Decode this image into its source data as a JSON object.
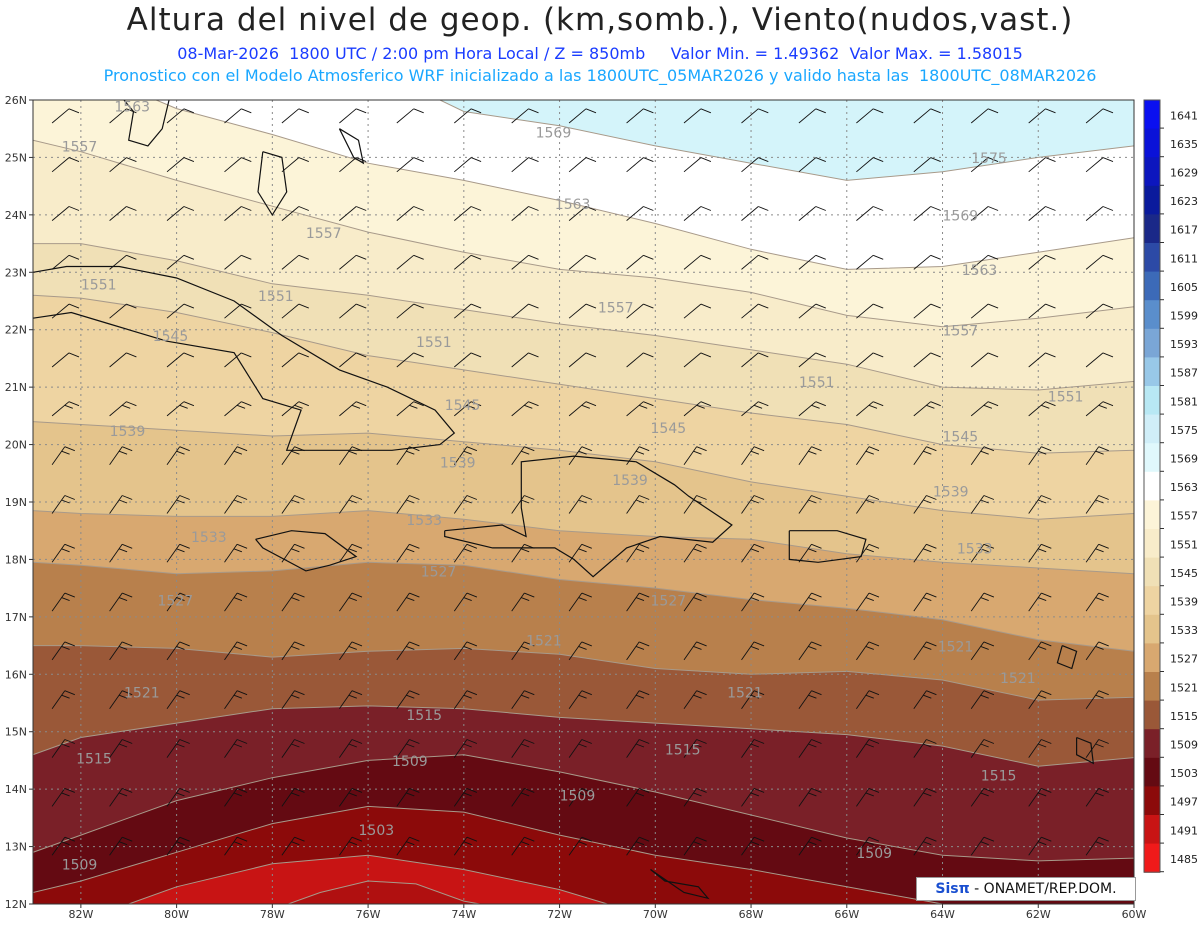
{
  "header": {
    "title": "Altura del nivel de geop. (km,somb.), Viento(nudos,vast.)",
    "line1": "08-Mar-2026  1800 UTC / 2:00 pm Hora Local / Z = 850mb     Valor Min. = 1.49362  Valor Max. = 1.58015",
    "line2": "Pronostico con el Modelo Atmosferico WRF inicializado a las 1800UTC_05MAR2026 y valido hasta las  1800UTC_08MAR2026"
  },
  "map": {
    "lon_range": [
      -83,
      -60
    ],
    "lat_range": [
      12,
      26
    ],
    "lon_ticks": [
      "82W",
      "80W",
      "78W",
      "76W",
      "74W",
      "72W",
      "70W",
      "68W",
      "66W",
      "64W",
      "62W",
      "60W"
    ],
    "lat_ticks": [
      "26N",
      "25N",
      "24N",
      "23N",
      "22N",
      "21N",
      "20N",
      "19N",
      "18N",
      "17N",
      "16N",
      "15N",
      "14N",
      "13N",
      "12N"
    ],
    "contour_labels": [
      {
        "text": "1563",
        "lon": -81.3,
        "lat": 25.8
      },
      {
        "text": "1557",
        "lon": -82.4,
        "lat": 25.1
      },
      {
        "text": "1569",
        "lon": -72.5,
        "lat": 25.35
      },
      {
        "text": "1575",
        "lon": -63.4,
        "lat": 24.9
      },
      {
        "text": "1563",
        "lon": -72.1,
        "lat": 24.1
      },
      {
        "text": "1569",
        "lon": -64.0,
        "lat": 23.9
      },
      {
        "text": "1557",
        "lon": -77.3,
        "lat": 23.6
      },
      {
        "text": "1563",
        "lon": -63.6,
        "lat": 22.95
      },
      {
        "text": "1551",
        "lon": -82.0,
        "lat": 22.7
      },
      {
        "text": "1551",
        "lon": -78.3,
        "lat": 22.5
      },
      {
        "text": "1557",
        "lon": -71.2,
        "lat": 22.3
      },
      {
        "text": "1557",
        "lon": -64.0,
        "lat": 21.9
      },
      {
        "text": "1545",
        "lon": -80.5,
        "lat": 21.8
      },
      {
        "text": "1551",
        "lon": -75.0,
        "lat": 21.7
      },
      {
        "text": "1551",
        "lon": -67.0,
        "lat": 21.0
      },
      {
        "text": "1551",
        "lon": -61.8,
        "lat": 20.75
      },
      {
        "text": "1545",
        "lon": -74.4,
        "lat": 20.6
      },
      {
        "text": "1545",
        "lon": -70.1,
        "lat": 20.2
      },
      {
        "text": "1545",
        "lon": -64.0,
        "lat": 20.05
      },
      {
        "text": "1539",
        "lon": -81.4,
        "lat": 20.15
      },
      {
        "text": "1539",
        "lon": -74.5,
        "lat": 19.6
      },
      {
        "text": "1539",
        "lon": -70.9,
        "lat": 19.3
      },
      {
        "text": "1539",
        "lon": -64.2,
        "lat": 19.1
      },
      {
        "text": "1533",
        "lon": -75.2,
        "lat": 18.6
      },
      {
        "text": "1533",
        "lon": -79.7,
        "lat": 18.3
      },
      {
        "text": "1533",
        "lon": -63.7,
        "lat": 18.1
      },
      {
        "text": "1527",
        "lon": -74.9,
        "lat": 17.7
      },
      {
        "text": "1527",
        "lon": -80.4,
        "lat": 17.2
      },
      {
        "text": "1527",
        "lon": -70.1,
        "lat": 17.2
      },
      {
        "text": "1521",
        "lon": -72.7,
        "lat": 16.5
      },
      {
        "text": "1521",
        "lon": -64.1,
        "lat": 16.4
      },
      {
        "text": "1521",
        "lon": -81.1,
        "lat": 15.6
      },
      {
        "text": "1521",
        "lon": -68.5,
        "lat": 15.6
      },
      {
        "text": "1521",
        "lon": -62.8,
        "lat": 15.85
      },
      {
        "text": "1515",
        "lon": -75.2,
        "lat": 15.2
      },
      {
        "text": "1515",
        "lon": -82.1,
        "lat": 14.45
      },
      {
        "text": "1515",
        "lon": -69.8,
        "lat": 14.6
      },
      {
        "text": "1515",
        "lon": -63.2,
        "lat": 14.15
      },
      {
        "text": "1509",
        "lon": -75.5,
        "lat": 14.4
      },
      {
        "text": "1509",
        "lon": -72.0,
        "lat": 13.8
      },
      {
        "text": "1509",
        "lon": -65.8,
        "lat": 12.8
      },
      {
        "text": "1509",
        "lon": -82.4,
        "lat": 12.6
      },
      {
        "text": "1503",
        "lon": -76.2,
        "lat": 13.2
      }
    ]
  },
  "colorbar": {
    "levels": [
      "1641",
      "1635",
      "1629",
      "1623",
      "1617",
      "1611",
      "1605",
      "1599",
      "1593",
      "1587",
      "1581",
      "1575",
      "1569",
      "1563",
      "1557",
      "1551",
      "1545",
      "1539",
      "1533",
      "1527",
      "1521",
      "1515",
      "1509",
      "1503",
      "1497",
      "1491",
      "1485"
    ],
    "colors": [
      "#0a10f0",
      "#0a12d8",
      "#0c16be",
      "#0a1a9c",
      "#1a2888",
      "#2c4aa6",
      "#3c6ab8",
      "#5a8ecc",
      "#7aa6d6",
      "#98c8e8",
      "#b8e8f4",
      "#d0eef8",
      "#e0f8fc",
      "#ffffff",
      "#fcf4d8",
      "#f8ecca",
      "#f0e0b6",
      "#eed4a2",
      "#e4c48c",
      "#d8a870",
      "#b8804c",
      "#9a5838",
      "#7a2028",
      "#640a12",
      "#8c0a0a",
      "#c81414",
      "#f01a1a"
    ]
  },
  "credit": {
    "brand": "Sisπ",
    "text": "- ONAMET/REP.DOM."
  },
  "colors": {
    "title": "#222222",
    "subtitle1": "#1a3cff",
    "subtitle2": "#1aa7ff"
  }
}
